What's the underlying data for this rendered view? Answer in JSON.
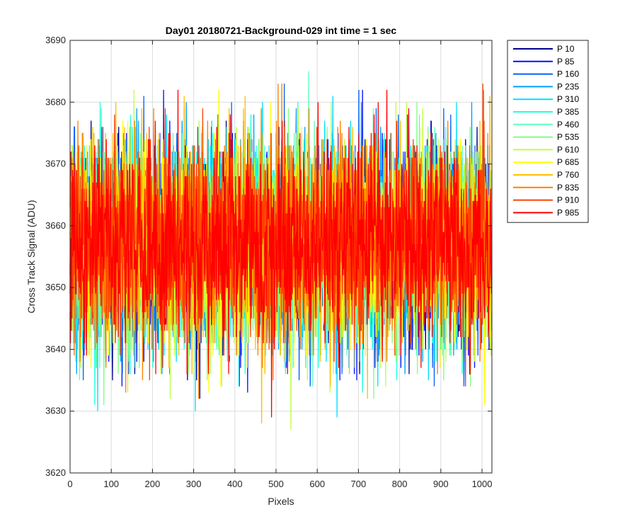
{
  "chart_data": {
    "type": "line",
    "title": "Day01 20180721-Background-029 int time = 1 sec",
    "xlabel": "Pixels",
    "ylabel": "Cross Track Signal (ADU)",
    "xlim": [
      0,
      1024
    ],
    "ylim": [
      3620,
      3690
    ],
    "xticks": [
      0,
      100,
      200,
      300,
      400,
      500,
      600,
      700,
      800,
      900,
      1000
    ],
    "yticks": [
      3620,
      3630,
      3640,
      3650,
      3660,
      3670,
      3680,
      3690
    ],
    "grid": true,
    "legend_position": "outside-top-right",
    "noise_model": {
      "mean": 3657,
      "std": 8
    },
    "series": [
      {
        "name": "P 10",
        "color": "#00008f"
      },
      {
        "name": "P 85",
        "color": "#0010ff"
      },
      {
        "name": "P 160",
        "color": "#0060ff"
      },
      {
        "name": "P 235",
        "color": "#00a0ff"
      },
      {
        "name": "P 310",
        "color": "#00dfff"
      },
      {
        "name": "P 385",
        "color": "#20ffdf"
      },
      {
        "name": "P 460",
        "color": "#60ffbf"
      },
      {
        "name": "P 535",
        "color": "#80ff80"
      },
      {
        "name": "P 610",
        "color": "#c0ff40"
      },
      {
        "name": "P 685",
        "color": "#ffff00"
      },
      {
        "name": "P 760",
        "color": "#ffbf00"
      },
      {
        "name": "P 835",
        "color": "#ff8000"
      },
      {
        "name": "P 910",
        "color": "#ff4000"
      },
      {
        "name": "P 985",
        "color": "#ff0000"
      }
    ]
  }
}
